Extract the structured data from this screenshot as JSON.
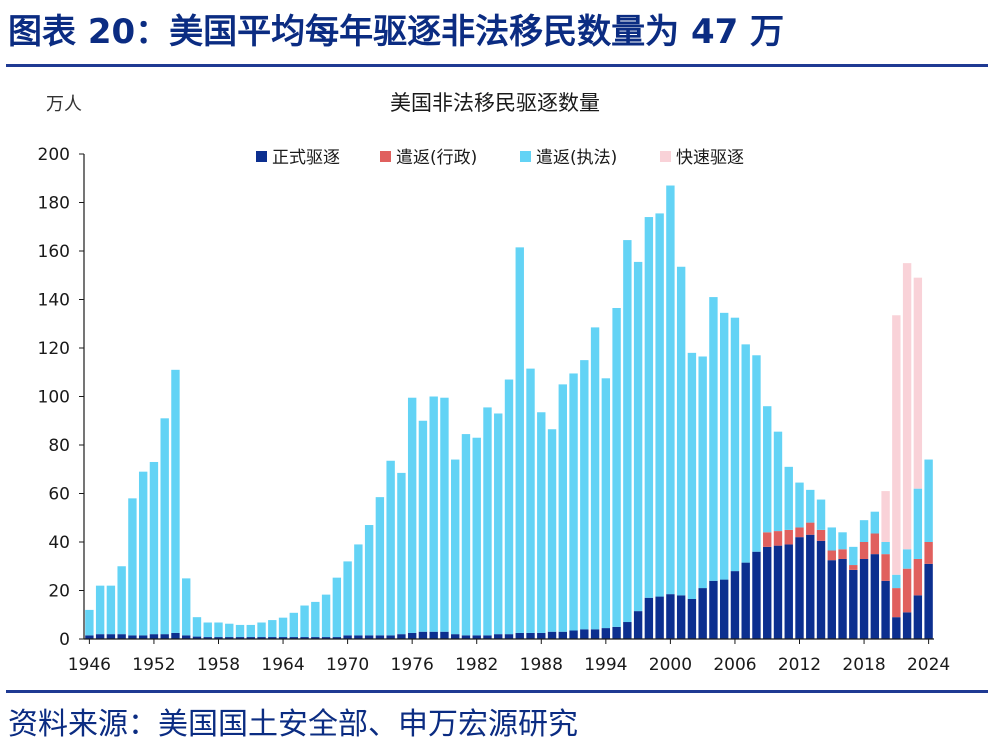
{
  "header": {
    "title": "图表 20：美国平均每年驱逐非法移民数量为 47 万"
  },
  "footer": {
    "source": "资料来源：美国国土安全部、申万宏源研究"
  },
  "colors": {
    "title": "#0b2c82",
    "rule": "#1f3a93",
    "formal_removal": "#0c2f8f",
    "admin_return": "#e0605e",
    "enforcement_return": "#63d3f5",
    "expedited_removal": "#f9d2d8",
    "axis": "#1a1a1a"
  },
  "chart_data": {
    "type": "bar",
    "stacked": true,
    "title": "美国非法移民驱逐数量",
    "unit": "万人",
    "ylim": [
      0,
      200
    ],
    "yticks": [
      0,
      20,
      40,
      60,
      80,
      100,
      120,
      140,
      160,
      180,
      200
    ],
    "xtick_labels": [
      "1946",
      "1952",
      "1958",
      "1964",
      "1970",
      "1976",
      "1982",
      "1988",
      "1994",
      "2000",
      "2006",
      "2012",
      "2018",
      "2024"
    ],
    "legend_position": "top",
    "grid": false,
    "categories": [
      1946,
      1947,
      1948,
      1949,
      1950,
      1951,
      1952,
      1953,
      1954,
      1955,
      1956,
      1957,
      1958,
      1959,
      1960,
      1961,
      1962,
      1963,
      1964,
      1965,
      1966,
      1967,
      1968,
      1969,
      1970,
      1971,
      1972,
      1973,
      1974,
      1975,
      1976,
      1977,
      1978,
      1979,
      1980,
      1981,
      1982,
      1983,
      1984,
      1985,
      1986,
      1987,
      1988,
      1989,
      1990,
      1991,
      1992,
      1993,
      1994,
      1995,
      1996,
      1997,
      1998,
      1999,
      2000,
      2001,
      2002,
      2003,
      2004,
      2005,
      2006,
      2007,
      2008,
      2009,
      2010,
      2011,
      2012,
      2013,
      2014,
      2015,
      2016,
      2017,
      2018,
      2019,
      2020,
      2021,
      2022,
      2023,
      2024
    ],
    "series": [
      {
        "name": "正式驱逐",
        "color": "#0c2f8f",
        "values": [
          1.5,
          2,
          2,
          2,
          1.5,
          1.5,
          2,
          2,
          2.5,
          1.5,
          1,
          0.8,
          0.8,
          0.8,
          0.8,
          0.8,
          0.8,
          0.8,
          0.8,
          0.8,
          0.8,
          0.8,
          0.8,
          0.8,
          1.5,
          1.5,
          1.5,
          1.5,
          1.5,
          2,
          2.5,
          3,
          3,
          3,
          2,
          1.5,
          1.5,
          1.5,
          2,
          2,
          2.5,
          2.5,
          2.5,
          3,
          3,
          3.5,
          4,
          4,
          4.5,
          5,
          7,
          11.5,
          17,
          17.5,
          18.5,
          18,
          16.5,
          21,
          24,
          24.5,
          28,
          31.5,
          36,
          38,
          38.5,
          39,
          42,
          43,
          40.5,
          32.5,
          33,
          28.5,
          33,
          35,
          24,
          9,
          11,
          18,
          31
        ]
      },
      {
        "name": "遣返(行政)",
        "color": "#e0605e",
        "values": [
          0,
          0,
          0,
          0,
          0,
          0,
          0,
          0,
          0,
          0,
          0,
          0,
          0,
          0,
          0,
          0,
          0,
          0,
          0,
          0,
          0,
          0,
          0,
          0,
          0,
          0,
          0,
          0,
          0,
          0,
          0,
          0,
          0,
          0,
          0,
          0,
          0,
          0,
          0,
          0,
          0,
          0,
          0,
          0,
          0,
          0,
          0,
          0,
          0,
          0,
          0,
          0,
          0,
          0,
          0,
          0,
          0,
          0,
          0,
          0,
          0,
          0,
          0,
          6,
          6,
          6,
          4,
          5,
          4.5,
          4,
          4,
          2,
          7,
          8.5,
          11,
          12,
          18,
          15,
          9
        ]
      },
      {
        "name": "遣返(执法)",
        "color": "#63d3f5",
        "values": [
          10.5,
          20,
          20,
          28,
          56.5,
          67.5,
          71,
          89,
          108.5,
          23.5,
          8,
          6,
          6,
          5.5,
          5,
          5,
          6,
          7,
          8,
          10,
          13,
          14.5,
          17.5,
          24.5,
          30.5,
          37.5,
          45.5,
          57,
          72,
          66.5,
          97,
          87,
          97,
          96.5,
          72,
          83,
          81.5,
          94,
          91,
          105,
          159,
          109,
          91,
          83.5,
          102,
          106,
          111,
          124.5,
          103,
          131.5,
          157.5,
          144,
          157,
          158,
          168.5,
          135.5,
          101.5,
          95.5,
          117,
          110,
          104.5,
          90,
          81,
          52,
          41,
          26,
          18.5,
          13.5,
          12.5,
          9.5,
          7,
          7.5,
          9,
          9,
          5,
          5.5,
          8,
          29,
          34
        ]
      },
      {
        "name": "快速驱逐",
        "color": "#f9d2d8",
        "values": [
          0,
          0,
          0,
          0,
          0,
          0,
          0,
          0,
          0,
          0,
          0,
          0,
          0,
          0,
          0,
          0,
          0,
          0,
          0,
          0,
          0,
          0,
          0,
          0,
          0,
          0,
          0,
          0,
          0,
          0,
          0,
          0,
          0,
          0,
          0,
          0,
          0,
          0,
          0,
          0,
          0,
          0,
          0,
          0,
          0,
          0,
          0,
          0,
          0,
          0,
          0,
          0,
          0,
          0,
          0,
          0,
          0,
          0,
          0,
          0,
          0,
          0,
          0,
          0,
          0,
          0,
          0,
          0,
          0,
          0,
          0,
          0,
          0,
          0,
          21,
          107,
          118,
          87,
          0
        ]
      }
    ]
  }
}
